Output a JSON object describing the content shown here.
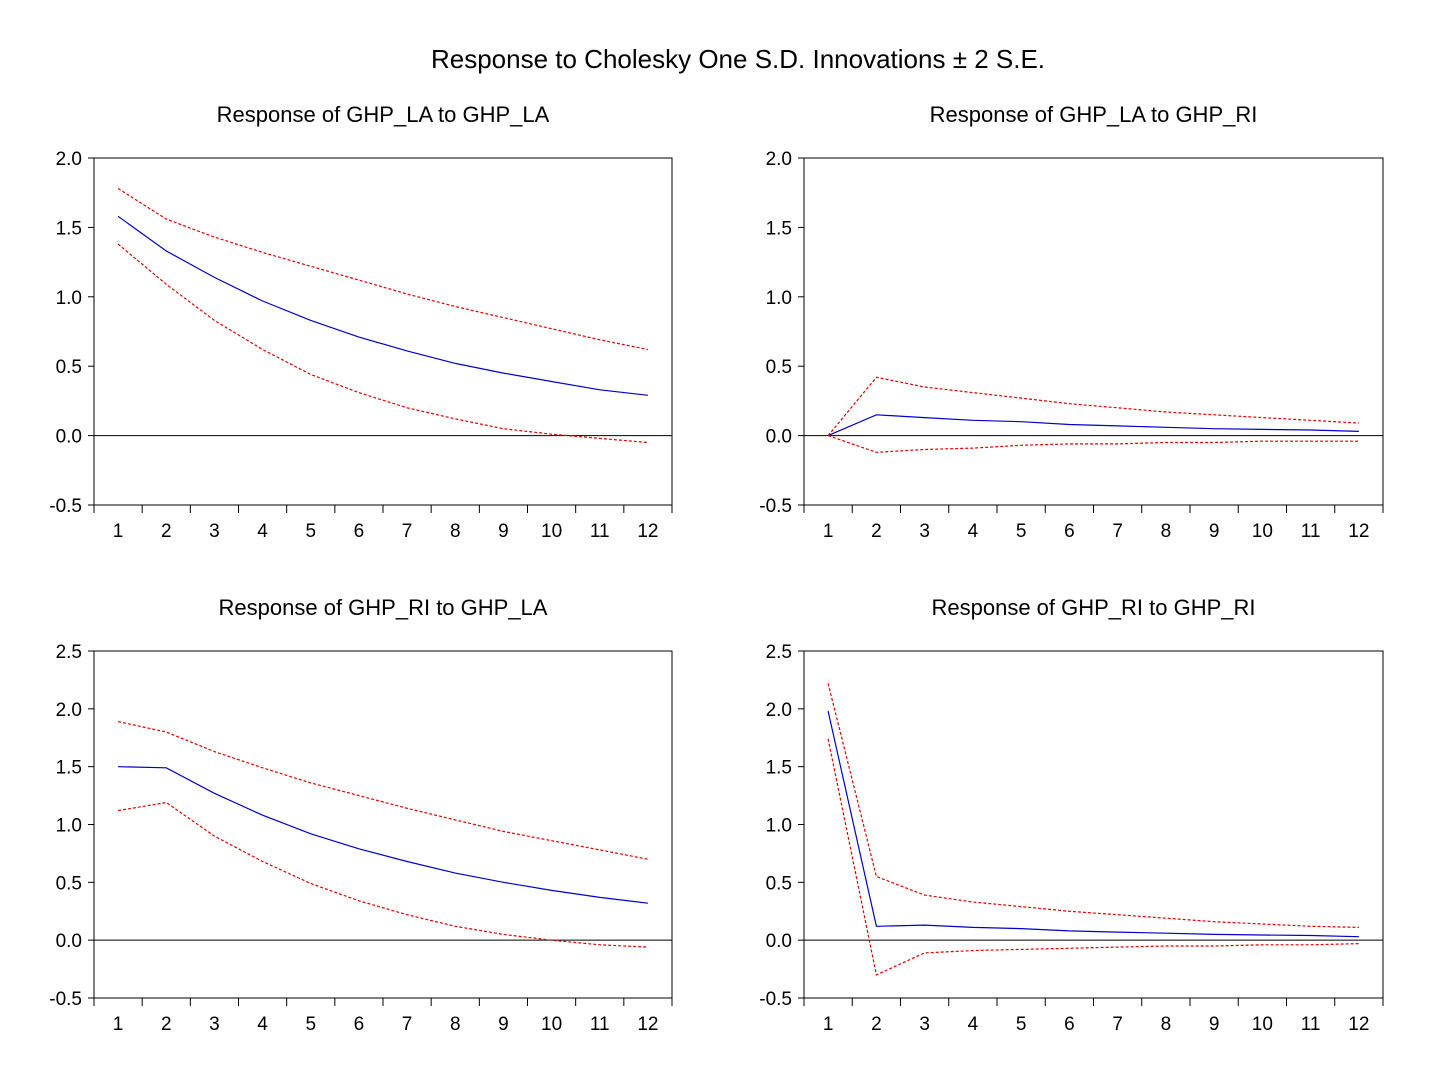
{
  "title": "Response to Cholesky One S.D. Innovations ± 2 S.E.",
  "colors": {
    "response": "#0000cc",
    "bands": "#e00000",
    "zero_line": "#000000",
    "frame": "#000000"
  },
  "chart_data": [
    {
      "type": "line",
      "title": "Response of GHP_LA to GHP_LA",
      "x": [
        1,
        2,
        3,
        4,
        5,
        6,
        7,
        8,
        9,
        10,
        11,
        12
      ],
      "ylim": [
        -0.5,
        2.0
      ],
      "yticks": [
        "-0.5",
        "0.0",
        "0.5",
        "1.0",
        "1.5",
        "2.0"
      ],
      "grid": false,
      "series": [
        {
          "role": "response",
          "values": [
            1.58,
            1.33,
            1.14,
            0.97,
            0.83,
            0.71,
            0.61,
            0.52,
            0.45,
            0.39,
            0.33,
            0.29
          ]
        },
        {
          "role": "upper",
          "values": [
            1.78,
            1.56,
            1.43,
            1.32,
            1.22,
            1.12,
            1.02,
            0.93,
            0.85,
            0.77,
            0.69,
            0.62
          ]
        },
        {
          "role": "lower",
          "values": [
            1.38,
            1.09,
            0.83,
            0.62,
            0.44,
            0.31,
            0.2,
            0.12,
            0.05,
            0.01,
            -0.02,
            -0.05
          ]
        }
      ]
    },
    {
      "type": "line",
      "title": "Response of GHP_LA to GHP_RI",
      "x": [
        1,
        2,
        3,
        4,
        5,
        6,
        7,
        8,
        9,
        10,
        11,
        12
      ],
      "ylim": [
        -0.5,
        2.0
      ],
      "yticks": [
        "-0.5",
        "0.0",
        "0.5",
        "1.0",
        "1.5",
        "2.0"
      ],
      "grid": false,
      "series": [
        {
          "role": "response",
          "values": [
            0.0,
            0.15,
            0.13,
            0.11,
            0.1,
            0.08,
            0.07,
            0.06,
            0.05,
            0.045,
            0.04,
            0.03
          ]
        },
        {
          "role": "upper",
          "values": [
            0.0,
            0.42,
            0.35,
            0.31,
            0.27,
            0.23,
            0.2,
            0.17,
            0.15,
            0.13,
            0.11,
            0.09
          ]
        },
        {
          "role": "lower",
          "values": [
            0.0,
            -0.12,
            -0.1,
            -0.09,
            -0.07,
            -0.06,
            -0.06,
            -0.05,
            -0.05,
            -0.04,
            -0.04,
            -0.04
          ]
        }
      ]
    },
    {
      "type": "line",
      "title": "Response of GHP_RI to GHP_LA",
      "x": [
        1,
        2,
        3,
        4,
        5,
        6,
        7,
        8,
        9,
        10,
        11,
        12
      ],
      "ylim": [
        -0.5,
        2.5
      ],
      "yticks": [
        "-0.5",
        "0.0",
        "0.5",
        "1.0",
        "1.5",
        "2.0",
        "2.5"
      ],
      "grid": false,
      "series": [
        {
          "role": "response",
          "values": [
            1.5,
            1.49,
            1.27,
            1.08,
            0.92,
            0.79,
            0.68,
            0.58,
            0.5,
            0.43,
            0.37,
            0.32
          ]
        },
        {
          "role": "upper",
          "values": [
            1.89,
            1.8,
            1.63,
            1.49,
            1.36,
            1.25,
            1.14,
            1.04,
            0.94,
            0.86,
            0.78,
            0.7
          ]
        },
        {
          "role": "lower",
          "values": [
            1.12,
            1.19,
            0.9,
            0.68,
            0.49,
            0.34,
            0.22,
            0.12,
            0.05,
            0.0,
            -0.04,
            -0.06
          ]
        }
      ]
    },
    {
      "type": "line",
      "title": "Response of GHP_RI to GHP_RI",
      "x": [
        1,
        2,
        3,
        4,
        5,
        6,
        7,
        8,
        9,
        10,
        11,
        12
      ],
      "ylim": [
        -0.5,
        2.5
      ],
      "yticks": [
        "-0.5",
        "0.0",
        "0.5",
        "1.0",
        "1.5",
        "2.0",
        "2.5"
      ],
      "grid": false,
      "series": [
        {
          "role": "response",
          "values": [
            1.98,
            0.12,
            0.13,
            0.11,
            0.1,
            0.08,
            0.07,
            0.06,
            0.05,
            0.045,
            0.04,
            0.03
          ]
        },
        {
          "role": "upper",
          "values": [
            2.22,
            0.55,
            0.39,
            0.33,
            0.29,
            0.25,
            0.22,
            0.19,
            0.16,
            0.14,
            0.12,
            0.11
          ]
        },
        {
          "role": "lower",
          "values": [
            1.74,
            -0.3,
            -0.11,
            -0.09,
            -0.08,
            -0.07,
            -0.06,
            -0.05,
            -0.05,
            -0.04,
            -0.04,
            -0.03
          ]
        }
      ]
    }
  ]
}
